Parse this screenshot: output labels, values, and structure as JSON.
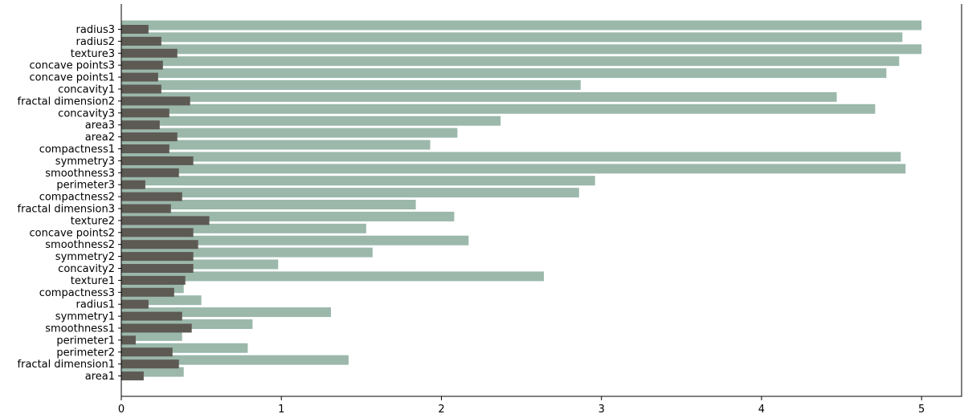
{
  "chart_data": {
    "type": "bar",
    "orientation": "horizontal",
    "title": "",
    "xlabel": "",
    "ylabel": "",
    "xlim": [
      0,
      5.25
    ],
    "x_ticks": [
      0,
      1,
      2,
      3,
      4,
      5
    ],
    "grid": false,
    "legend": "none",
    "categories": [
      "radius3",
      "radius2",
      "texture3",
      "concave points3",
      "concave points1",
      "concavity1",
      "fractal dimension2",
      "concavity3",
      "area3",
      "area2",
      "compactness1",
      "symmetry3",
      "smoothness3",
      "perimeter3",
      "compactness2",
      "fractal dimension3",
      "texture2",
      "concave points2",
      "smoothness2",
      "symmetry2",
      "concavity2",
      "texture1",
      "compactness3",
      "radius1",
      "symmetry1",
      "smoothness1",
      "perimeter1",
      "perimeter2",
      "fractal dimension1",
      "area1"
    ],
    "series": [
      {
        "color": "#9bb8ab",
        "values": [
          5.0,
          4.88,
          5.0,
          4.86,
          4.78,
          2.87,
          4.47,
          4.71,
          2.37,
          2.1,
          1.93,
          4.87,
          4.9,
          2.96,
          2.86,
          1.84,
          2.08,
          1.53,
          2.17,
          1.57,
          0.98,
          2.64,
          0.39,
          0.5,
          1.31,
          0.82,
          0.38,
          0.79,
          1.42,
          0.39
        ]
      },
      {
        "color": "#5d5953",
        "values": [
          0.17,
          0.25,
          0.35,
          0.26,
          0.23,
          0.25,
          0.43,
          0.3,
          0.24,
          0.35,
          0.3,
          0.45,
          0.36,
          0.15,
          0.38,
          0.31,
          0.55,
          0.45,
          0.48,
          0.45,
          0.45,
          0.4,
          0.33,
          0.17,
          0.38,
          0.44,
          0.09,
          0.32,
          0.36,
          0.14
        ]
      }
    ]
  }
}
